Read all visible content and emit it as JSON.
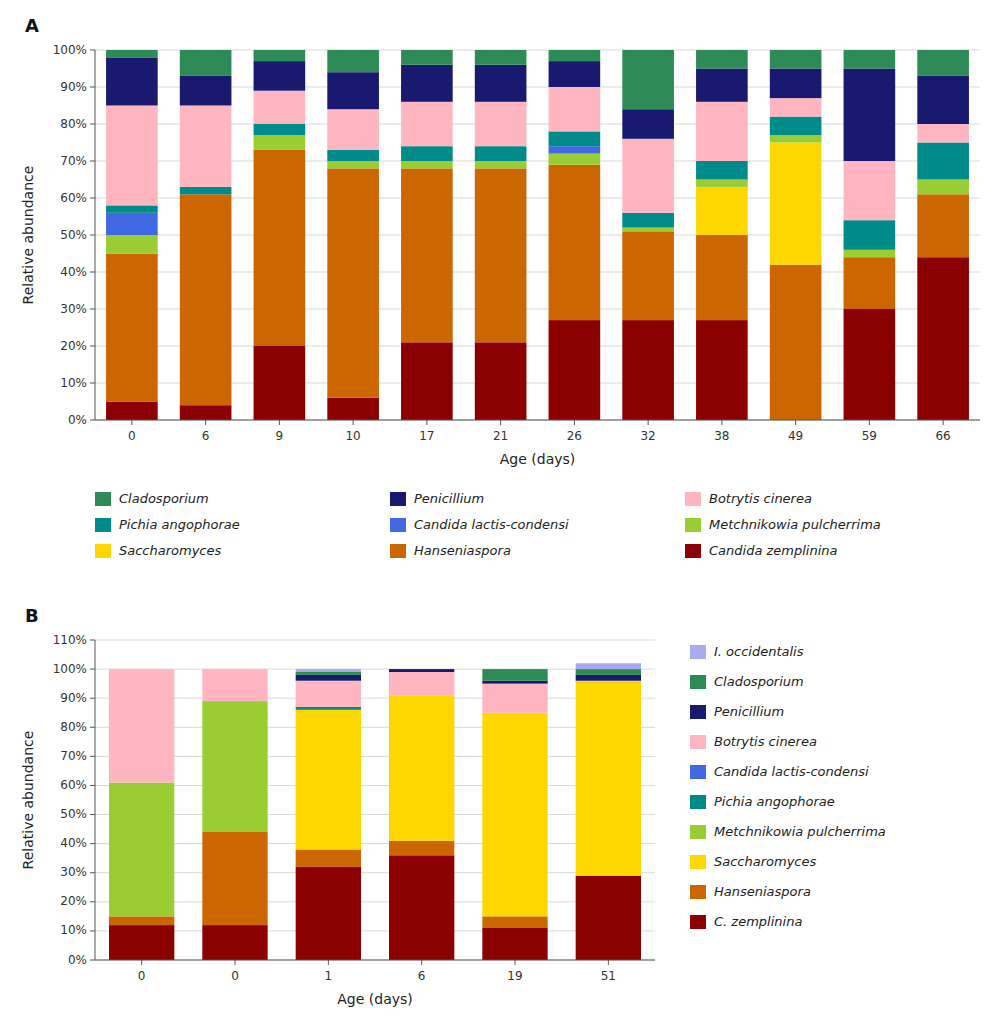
{
  "chart_data": [
    {
      "type": "bar",
      "stacked": true,
      "title": "A",
      "xlabel": "Age (days)",
      "ylabel": "Relative abundance",
      "categories": [
        "0",
        "6",
        "9",
        "10",
        "17",
        "21",
        "26",
        "32",
        "38",
        "49",
        "59",
        "66"
      ],
      "series": [
        {
          "name": "Candida zemplinina",
          "color": "#8B0000",
          "values": [
            5,
            4,
            20,
            6,
            21,
            21,
            27,
            27,
            27,
            0,
            30,
            44
          ]
        },
        {
          "name": "Hanseniaspora",
          "color": "#CC6600",
          "values": [
            40,
            57,
            53,
            62,
            47,
            47,
            42,
            24,
            23,
            42,
            14,
            17
          ]
        },
        {
          "name": "Saccharomyces",
          "color": "#FFD700",
          "values": [
            0,
            0,
            0,
            0,
            0,
            0,
            0,
            0,
            13,
            33,
            0,
            0
          ]
        },
        {
          "name": "Metchnikowia pulcherrima",
          "color": "#9ACD32",
          "values": [
            5,
            0,
            4,
            2,
            2,
            2,
            3,
            1,
            2,
            2,
            2,
            4
          ]
        },
        {
          "name": "Candida lactis-condensi",
          "color": "#4169E1",
          "values": [
            6,
            0,
            0,
            0,
            0,
            0,
            2,
            0,
            0,
            0,
            0,
            0
          ]
        },
        {
          "name": "Pichia angophorae",
          "color": "#008B8B",
          "values": [
            2,
            2,
            3,
            3,
            4,
            4,
            4,
            4,
            5,
            5,
            8,
            10
          ]
        },
        {
          "name": "Botrytis cinerea",
          "color": "#FFB6C1",
          "values": [
            27,
            22,
            9,
            11,
            12,
            12,
            12,
            20,
            16,
            5,
            16,
            5
          ]
        },
        {
          "name": "Penicillium",
          "color": "#191970",
          "values": [
            13,
            8,
            8,
            10,
            10,
            10,
            7,
            8,
            9,
            8,
            25,
            13
          ]
        },
        {
          "name": "Cladosporium",
          "color": "#2E8B57",
          "values": [
            2,
            7,
            3,
            6,
            4,
            4,
            3,
            16,
            5,
            5,
            5,
            7
          ]
        }
      ],
      "ylim": [
        0,
        100
      ],
      "yticks": [
        {
          "value": 0,
          "label": "0%"
        },
        {
          "value": 10,
          "label": "10%"
        },
        {
          "value": 20,
          "label": "20%"
        },
        {
          "value": 30,
          "label": "30%"
        },
        {
          "value": 40,
          "label": "40%"
        },
        {
          "value": 50,
          "label": "50%"
        },
        {
          "value": 60,
          "label": "60%"
        },
        {
          "value": 70,
          "label": "70%"
        },
        {
          "value": 80,
          "label": "80%"
        },
        {
          "value": 90,
          "label": "90%"
        },
        {
          "value": 100,
          "label": "100%"
        }
      ],
      "grid": true,
      "legend": "bottom"
    },
    {
      "type": "bar",
      "stacked": true,
      "title": "B",
      "xlabel": "Age (days)",
      "ylabel": "Relative abundance",
      "categories": [
        "0",
        "0",
        "1",
        "6",
        "19",
        "51"
      ],
      "series": [
        {
          "name": "C. zemplinina",
          "color": "#8B0000",
          "values": [
            12,
            12,
            32,
            36,
            11,
            29
          ]
        },
        {
          "name": "Hanseniaspora",
          "color": "#CC6600",
          "values": [
            3,
            32,
            6,
            5,
            4,
            0
          ]
        },
        {
          "name": "Saccharomyces",
          "color": "#FFD700",
          "values": [
            0,
            0,
            48,
            50,
            70,
            67
          ]
        },
        {
          "name": "Metchnikowia pulcherrima",
          "color": "#9ACD32",
          "values": [
            46,
            45,
            0,
            0,
            0,
            0
          ]
        },
        {
          "name": "Pichia angophorae",
          "color": "#008B8B",
          "values": [
            0,
            0,
            1,
            0,
            0,
            0
          ]
        },
        {
          "name": "Candida lactis-condensi",
          "color": "#4169E1",
          "values": [
            0,
            0,
            0,
            0,
            0,
            0
          ]
        },
        {
          "name": "Botrytis cinerea",
          "color": "#FFB6C1",
          "values": [
            39,
            11,
            9,
            8,
            10,
            0
          ]
        },
        {
          "name": "Penicillium",
          "color": "#191970",
          "values": [
            0,
            0,
            2,
            1,
            1,
            2
          ]
        },
        {
          "name": "Cladosporium",
          "color": "#2E8B57",
          "values": [
            0,
            0,
            1,
            0,
            4,
            2
          ]
        },
        {
          "name": "I. occidentalis",
          "color": "#AAAAEE",
          "values": [
            0,
            0,
            1,
            0,
            0,
            2
          ]
        }
      ],
      "ylim": [
        0,
        110
      ],
      "yticks": [
        {
          "value": 0,
          "label": "0%"
        },
        {
          "value": 10,
          "label": "10%"
        },
        {
          "value": 20,
          "label": "20%"
        },
        {
          "value": 30,
          "label": "30%"
        },
        {
          "value": 40,
          "label": "40%"
        },
        {
          "value": 50,
          "label": "50%"
        },
        {
          "value": 60,
          "label": "60%"
        },
        {
          "value": 70,
          "label": "70%"
        },
        {
          "value": 80,
          "label": "80%"
        },
        {
          "value": 90,
          "label": "90%"
        },
        {
          "value": 100,
          "label": "100%"
        },
        {
          "value": 110,
          "label": "110%"
        }
      ],
      "grid": true,
      "legend": "right"
    }
  ]
}
